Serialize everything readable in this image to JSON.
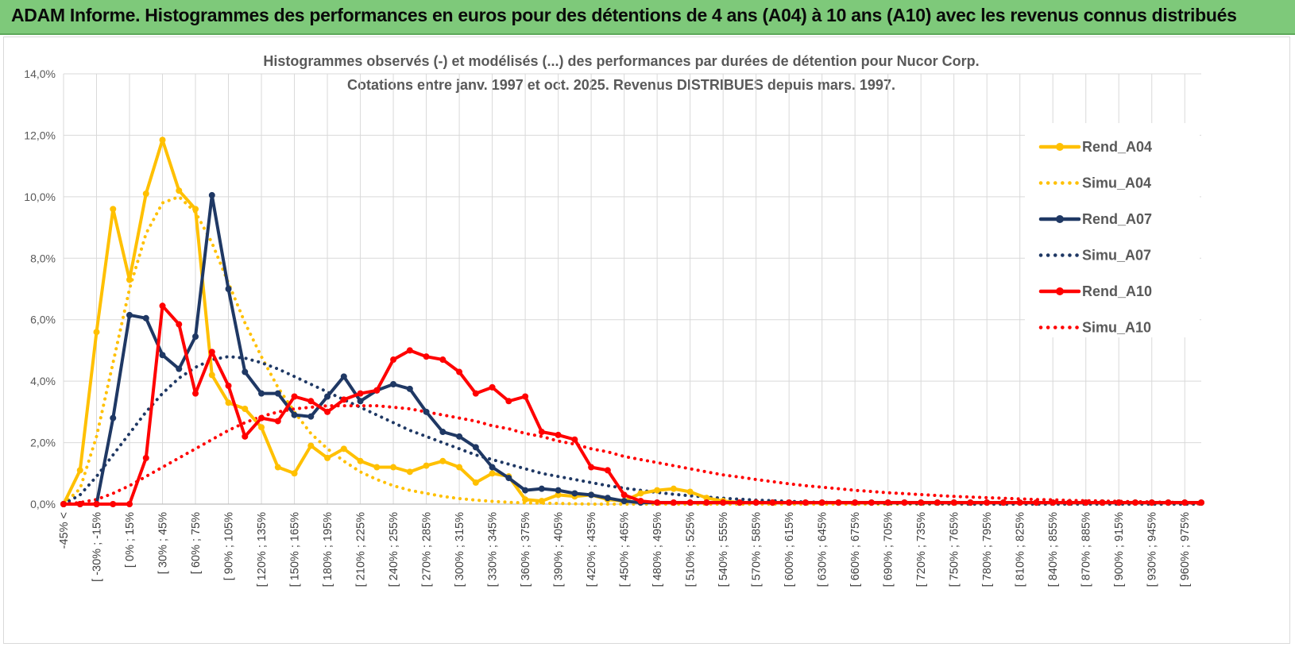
{
  "header": {
    "banner": "ADAM Informe. Histogrammes des performances en euros pour des détentions de 4 ans (A04) à 10 ans (A10) avec les revenus connus distribués"
  },
  "chart_data": {
    "type": "line",
    "title": "Histogrammes observés (-) et modélisés (...) des performances par durées de détention pour Nucor Corp.",
    "subtitle": "Cotations entre janv. 1997 et oct. 2025.  Revenus DISTRIBUES depuis mars. 1997.",
    "ylim": [
      0,
      14
    ],
    "y_ticks": [
      "0,0%",
      "2,0%",
      "4,0%",
      "6,0%",
      "8,0%",
      "10,0%",
      "12,0%",
      "14,0%"
    ],
    "grid": true,
    "legend_position": "right",
    "x_labels": [
      "-45% <",
      "[ -30% ; -15%",
      "[ 0% ; 15%",
      "[ 30% ; 45%",
      "[ 60% ; 75%",
      "[ 90% ; 105%",
      "[ 120% ; 135%",
      "[ 150% ; 165%",
      "[ 180% ; 195%",
      "[ 210% ; 225%",
      "[ 240% ; 255%",
      "[ 270% ; 285%",
      "[ 300% ; 315%",
      "[ 330% ; 345%",
      "[ 360% ; 375%",
      "[ 390% ; 405%",
      "[ 420% ; 435%",
      "[ 450% ; 465%",
      "[ 480% ; 495%",
      "[ 510% ; 525%",
      "[ 540% ; 555%",
      "[ 570% ; 585%",
      "[ 600% ; 615%",
      "[ 630% ; 645%",
      "[ 660% ; 675%",
      "[ 690% ; 705%",
      "[ 720% ; 735%",
      "[ 750% ; 765%",
      "[ 780% ; 795%",
      "[ 810% ; 825%",
      "[ 840% ; 855%",
      "[ 870% ; 885%",
      "[ 900% ; 915%",
      "[ 930% ; 945%",
      "[ 960% ; 975%"
    ],
    "series": [
      {
        "name": "Rend_A04",
        "color": "#ffc000",
        "style": "solid",
        "markers": true,
        "values": [
          0,
          1.1,
          5.6,
          9.6,
          7.3,
          10.1,
          11.85,
          10.2,
          9.6,
          4.2,
          3.3,
          3.1,
          2.5,
          1.2,
          1.0,
          1.9,
          1.5,
          1.8,
          1.4,
          1.2,
          1.2,
          1.05,
          1.25,
          1.4,
          1.2,
          0.7,
          1.0,
          0.9,
          0.15,
          0.1,
          0.3,
          0.25,
          0.3,
          0.15,
          0.1,
          0.35,
          0.45,
          0.5,
          0.4,
          0.2,
          0.1,
          0.05,
          0.05,
          0.05,
          0.05,
          0.05,
          0.05,
          0.05,
          0.05,
          0.05,
          0.05,
          0.05,
          0.05,
          0.05,
          0.05,
          0.05,
          0.05,
          0.05,
          0.05,
          0.05,
          0.05,
          0.05,
          0.05,
          0.05,
          0.05,
          0.05,
          0.05,
          0.05,
          0.05,
          0.05
        ]
      },
      {
        "name": "Simu_A04",
        "color": "#ffc000",
        "style": "dotted",
        "markers": false,
        "values": [
          0,
          0.5,
          2.2,
          4.6,
          7.0,
          8.8,
          9.8,
          10.0,
          9.5,
          8.5,
          7.2,
          5.9,
          4.8,
          3.8,
          3.0,
          2.3,
          1.8,
          1.4,
          1.05,
          0.8,
          0.6,
          0.45,
          0.35,
          0.25,
          0.18,
          0.13,
          0.09,
          0.06,
          0.04,
          0.03,
          0.02,
          0.01,
          0,
          0,
          0,
          0,
          0,
          0,
          0,
          0,
          0,
          0,
          0,
          0,
          0,
          0,
          0,
          0,
          0,
          0,
          0,
          0,
          0,
          0,
          0,
          0,
          0,
          0,
          0,
          0,
          0,
          0,
          0,
          0,
          0,
          0,
          0,
          0,
          0,
          0
        ]
      },
      {
        "name": "Rend_A07",
        "color": "#1f3864",
        "style": "solid",
        "markers": true,
        "values": [
          0,
          0,
          0,
          2.8,
          6.15,
          6.05,
          4.85,
          4.4,
          5.45,
          10.05,
          7.0,
          4.3,
          3.6,
          3.6,
          2.9,
          2.85,
          3.5,
          4.15,
          3.35,
          3.7,
          3.9,
          3.75,
          3.0,
          2.35,
          2.2,
          1.85,
          1.2,
          0.85,
          0.45,
          0.5,
          0.45,
          0.35,
          0.3,
          0.2,
          0.1,
          0.05,
          0.05,
          0.05,
          0.05,
          0.05,
          0.05,
          0.05,
          0.05,
          0.05,
          0.05,
          0.05,
          0.05,
          0.05,
          0.05,
          0.05,
          0.05,
          0.05,
          0.05,
          0.05,
          0.05,
          0.05,
          0.05,
          0.05,
          0.05,
          0.05,
          0.05,
          0.05,
          0.05,
          0.05,
          0.05,
          0.05,
          0.05,
          0.05,
          0.05,
          0.05
        ]
      },
      {
        "name": "Simu_A07",
        "color": "#1f3864",
        "style": "dotted",
        "markers": false,
        "values": [
          0,
          0.3,
          0.9,
          1.6,
          2.3,
          3.0,
          3.6,
          4.1,
          4.45,
          4.7,
          4.8,
          4.75,
          4.6,
          4.4,
          4.15,
          3.9,
          3.65,
          3.4,
          3.15,
          2.9,
          2.65,
          2.4,
          2.2,
          2.0,
          1.8,
          1.6,
          1.45,
          1.3,
          1.15,
          1.0,
          0.9,
          0.8,
          0.7,
          0.6,
          0.52,
          0.45,
          0.38,
          0.32,
          0.27,
          0.23,
          0.19,
          0.16,
          0.13,
          0.11,
          0.09,
          0.07,
          0.06,
          0.05,
          0.04,
          0.03,
          0.02,
          0.02,
          0.01,
          0.01,
          0.01,
          0,
          0,
          0,
          0,
          0,
          0,
          0,
          0,
          0,
          0,
          0,
          0,
          0,
          0,
          0
        ]
      },
      {
        "name": "Rend_A10",
        "color": "#ff0000",
        "style": "solid",
        "markers": true,
        "values": [
          0,
          0,
          0,
          0,
          0,
          1.5,
          6.45,
          5.85,
          3.6,
          4.95,
          3.85,
          2.2,
          2.8,
          2.7,
          3.5,
          3.35,
          3.0,
          3.4,
          3.6,
          3.7,
          4.7,
          5.0,
          4.8,
          4.7,
          4.3,
          3.6,
          3.8,
          3.35,
          3.5,
          2.35,
          2.25,
          2.1,
          1.2,
          1.1,
          0.3,
          0.1,
          0.05,
          0.05,
          0.05,
          0.05,
          0.05,
          0.05,
          0.05,
          0.05,
          0.05,
          0.05,
          0.05,
          0.05,
          0.05,
          0.05,
          0.05,
          0.05,
          0.05,
          0.05,
          0.05,
          0.05,
          0.05,
          0.05,
          0.05,
          0.05,
          0.05,
          0.05,
          0.05,
          0.05,
          0.05,
          0.05,
          0.05,
          0.05,
          0.05,
          0.05
        ]
      },
      {
        "name": "Simu_A10",
        "color": "#ff0000",
        "style": "dotted",
        "markers": false,
        "values": [
          0,
          0.05,
          0.15,
          0.35,
          0.6,
          0.9,
          1.2,
          1.5,
          1.8,
          2.1,
          2.4,
          2.65,
          2.85,
          3.0,
          3.1,
          3.15,
          3.2,
          3.2,
          3.2,
          3.2,
          3.15,
          3.1,
          3.0,
          2.9,
          2.8,
          2.7,
          2.55,
          2.45,
          2.3,
          2.2,
          2.05,
          1.95,
          1.8,
          1.7,
          1.55,
          1.45,
          1.35,
          1.25,
          1.15,
          1.05,
          0.95,
          0.88,
          0.8,
          0.73,
          0.66,
          0.6,
          0.55,
          0.5,
          0.45,
          0.41,
          0.37,
          0.34,
          0.31,
          0.28,
          0.25,
          0.23,
          0.21,
          0.19,
          0.17,
          0.15,
          0.14,
          0.12,
          0.11,
          0.1,
          0.09,
          0.08,
          0.07,
          0.06,
          0.05,
          0
        ]
      }
    ]
  }
}
